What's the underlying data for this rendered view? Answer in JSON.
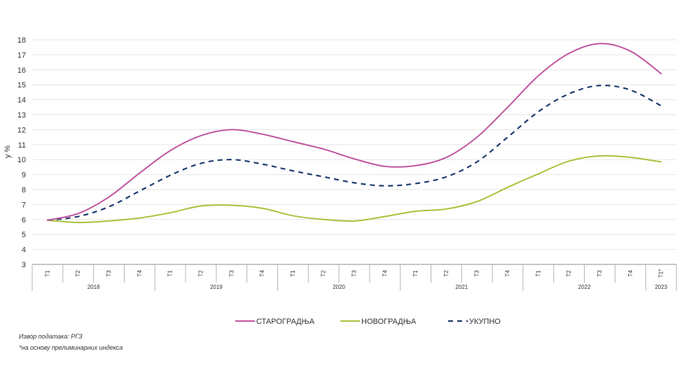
{
  "chart_data": {
    "type": "line",
    "ylabel": "у %",
    "ylim": [
      3,
      18
    ],
    "yticks": [
      "3",
      "4",
      "5",
      "6",
      "7",
      "8",
      "9",
      "10",
      "11",
      "12",
      "13",
      "14",
      "15",
      "16",
      "17",
      "18"
    ],
    "grid": true,
    "categories": [
      "T1",
      "T2",
      "T3",
      "T4",
      "T1",
      "T2",
      "T3",
      "T4",
      "T1",
      "T2",
      "T3",
      "T4",
      "T1",
      "T2",
      "T3",
      "T4",
      "T1",
      "T2",
      "T3",
      "T4",
      "T1*"
    ],
    "years": [
      {
        "label": "2018",
        "start": 0,
        "span": 4
      },
      {
        "label": "2019",
        "start": 4,
        "span": 4
      },
      {
        "label": "2020",
        "start": 8,
        "span": 4
      },
      {
        "label": "2021",
        "start": 12,
        "span": 4
      },
      {
        "label": "2022",
        "start": 16,
        "span": 4
      },
      {
        "label": "2023",
        "start": 20,
        "span": 1
      }
    ],
    "legend_position": "bottom",
    "series": [
      {
        "name": "СТАРОГРАДЊА",
        "color": "#c0559e",
        "dashed": false,
        "values": [
          5.95,
          6.4,
          7.5,
          9.1,
          10.6,
          11.6,
          12.0,
          11.7,
          11.2,
          10.7,
          10.05,
          9.55,
          9.6,
          10.15,
          11.5,
          13.5,
          15.6,
          17.1,
          17.75,
          17.25,
          15.75
        ]
      },
      {
        "name": "НОВОГРАДЊА",
        "color": "#a9c23a",
        "dashed": false,
        "values": [
          5.95,
          5.8,
          5.9,
          6.1,
          6.45,
          6.9,
          6.95,
          6.75,
          6.25,
          6.0,
          5.9,
          6.2,
          6.55,
          6.7,
          7.2,
          8.15,
          9.05,
          9.9,
          10.25,
          10.15,
          9.85
        ]
      },
      {
        "name": "УКУПНО",
        "color": "#1f3c6e",
        "dashed": true,
        "values": [
          5.95,
          6.2,
          6.85,
          7.9,
          8.95,
          9.75,
          10.0,
          9.7,
          9.25,
          8.85,
          8.45,
          8.25,
          8.4,
          8.85,
          9.85,
          11.5,
          13.2,
          14.4,
          14.95,
          14.65,
          13.6
        ]
      }
    ]
  },
  "notes": {
    "source": "Извор података: РГЗ",
    "footnote": "*на основу прелиминарних индекса"
  }
}
